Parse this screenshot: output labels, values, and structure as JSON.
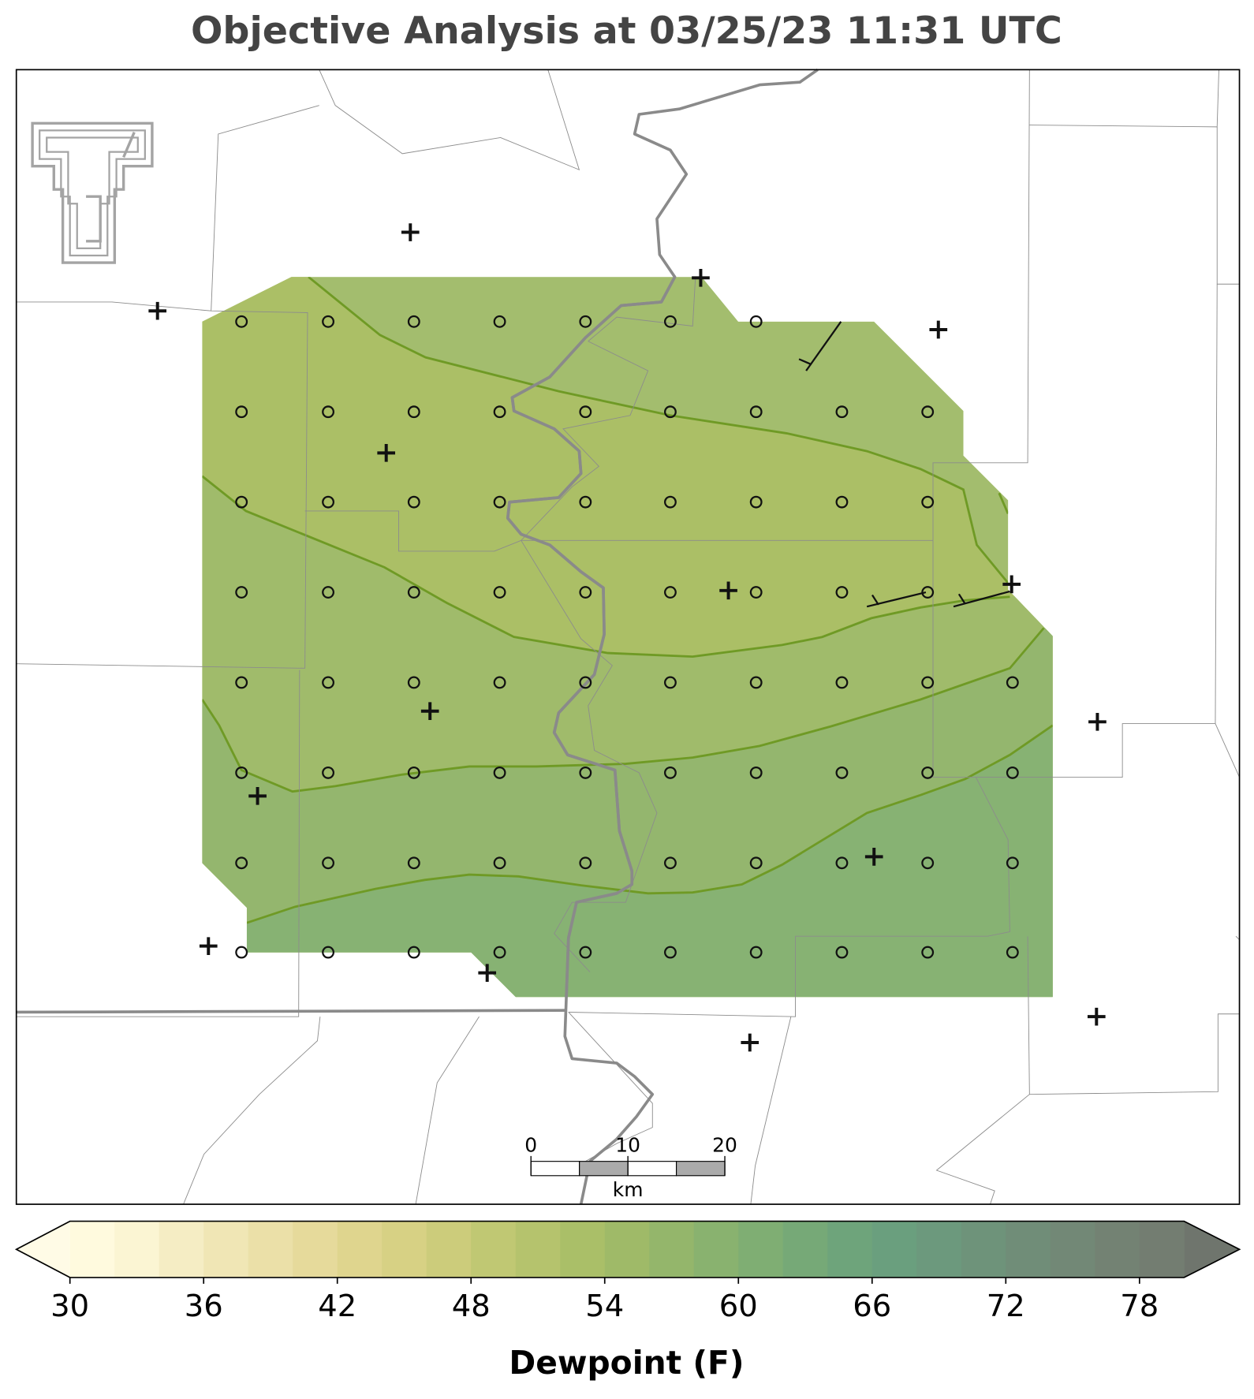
{
  "title": "Objective Analysis at 03/25/23 11:31 UTC",
  "colorbar": {
    "label": "Dewpoint (F)",
    "levels": [
      30,
      32,
      34,
      36,
      38,
      40,
      42,
      44,
      46,
      48,
      50,
      52,
      54,
      56,
      58,
      60,
      62,
      64,
      66,
      68,
      70,
      72,
      74,
      76,
      78,
      80
    ],
    "colors": [
      "#fffade",
      "#fbf5d3",
      "#f5edc4",
      "#f0e6b5",
      "#ebe0a8",
      "#e6da9b",
      "#dfd58e",
      "#d7d184",
      "#cccc7b",
      "#c0c873",
      "#b5c36d",
      "#aabf68",
      "#9fba68",
      "#94b66b",
      "#89b26f",
      "#7fae73",
      "#76a977",
      "#6ea47b",
      "#6a9f7e",
      "#6c997d",
      "#6e937a",
      "#708d78",
      "#728876",
      "#738273",
      "#737d71"
    ],
    "under_color": "#fffbe6",
    "over_color": "#6f756d",
    "ticks": [
      30,
      36,
      42,
      48,
      54,
      60,
      66,
      72,
      78
    ]
  },
  "scale_bar": {
    "ticks": [
      0,
      10,
      20
    ],
    "unit": "km"
  }
}
